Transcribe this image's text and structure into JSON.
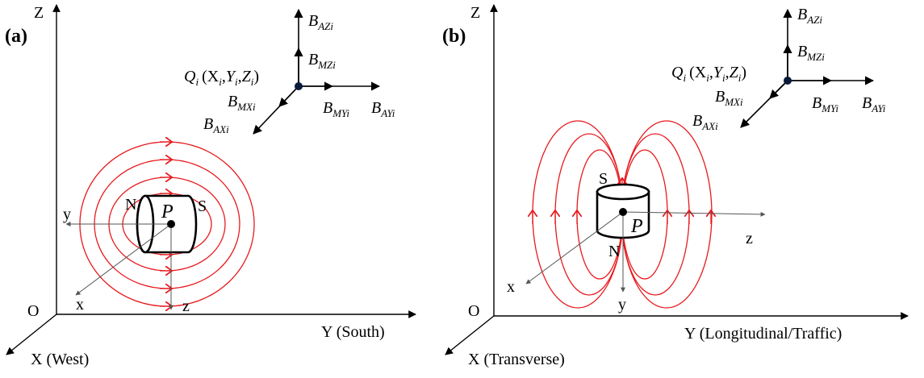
{
  "panels": [
    {
      "id": "a",
      "tag": "(a)",
      "axis_Z": "Z",
      "axis_Y": "Y (South)",
      "axis_X": "X (West)",
      "origin": "O",
      "local_x": "x",
      "local_y": "y",
      "local_z": "z",
      "pole_N": "N",
      "pole_S": "S",
      "point_P": "P",
      "point_Q": "Q",
      "point_Q_sub": "i",
      "coords": "(X",
      "coords_tail": ")",
      "vectors": {
        "AZ": "AZi",
        "MZ": "MZi",
        "MX": "MXi",
        "AX": "AXi",
        "MY": "MYi",
        "AY": "AYi"
      }
    },
    {
      "id": "b",
      "tag": "(b)",
      "axis_Z": "Z",
      "axis_Y": "Y (Longitudinal/Traffic)",
      "axis_X": "X (Transverse)",
      "origin": "O",
      "local_x": "x",
      "local_y": "y",
      "local_z": "z",
      "pole_N": "N",
      "pole_S": "S",
      "point_P": "P",
      "point_Q": "Q",
      "point_Q_sub": "i",
      "coords": "(X",
      "coords_tail": ")",
      "vectors": {
        "AZ": "AZi",
        "MZ": "MZi",
        "MX": "MXi",
        "AX": "AXi",
        "MY": "MYi",
        "AY": "AYi"
      }
    }
  ],
  "symbols": {
    "B": "B",
    "Y": "Y",
    "Z": "Z",
    "comma": ",",
    "sub_i": "i"
  },
  "colors": {
    "field_lines": "#e8191d",
    "axes": "#000000",
    "point_Q": "#0a1a3a"
  }
}
